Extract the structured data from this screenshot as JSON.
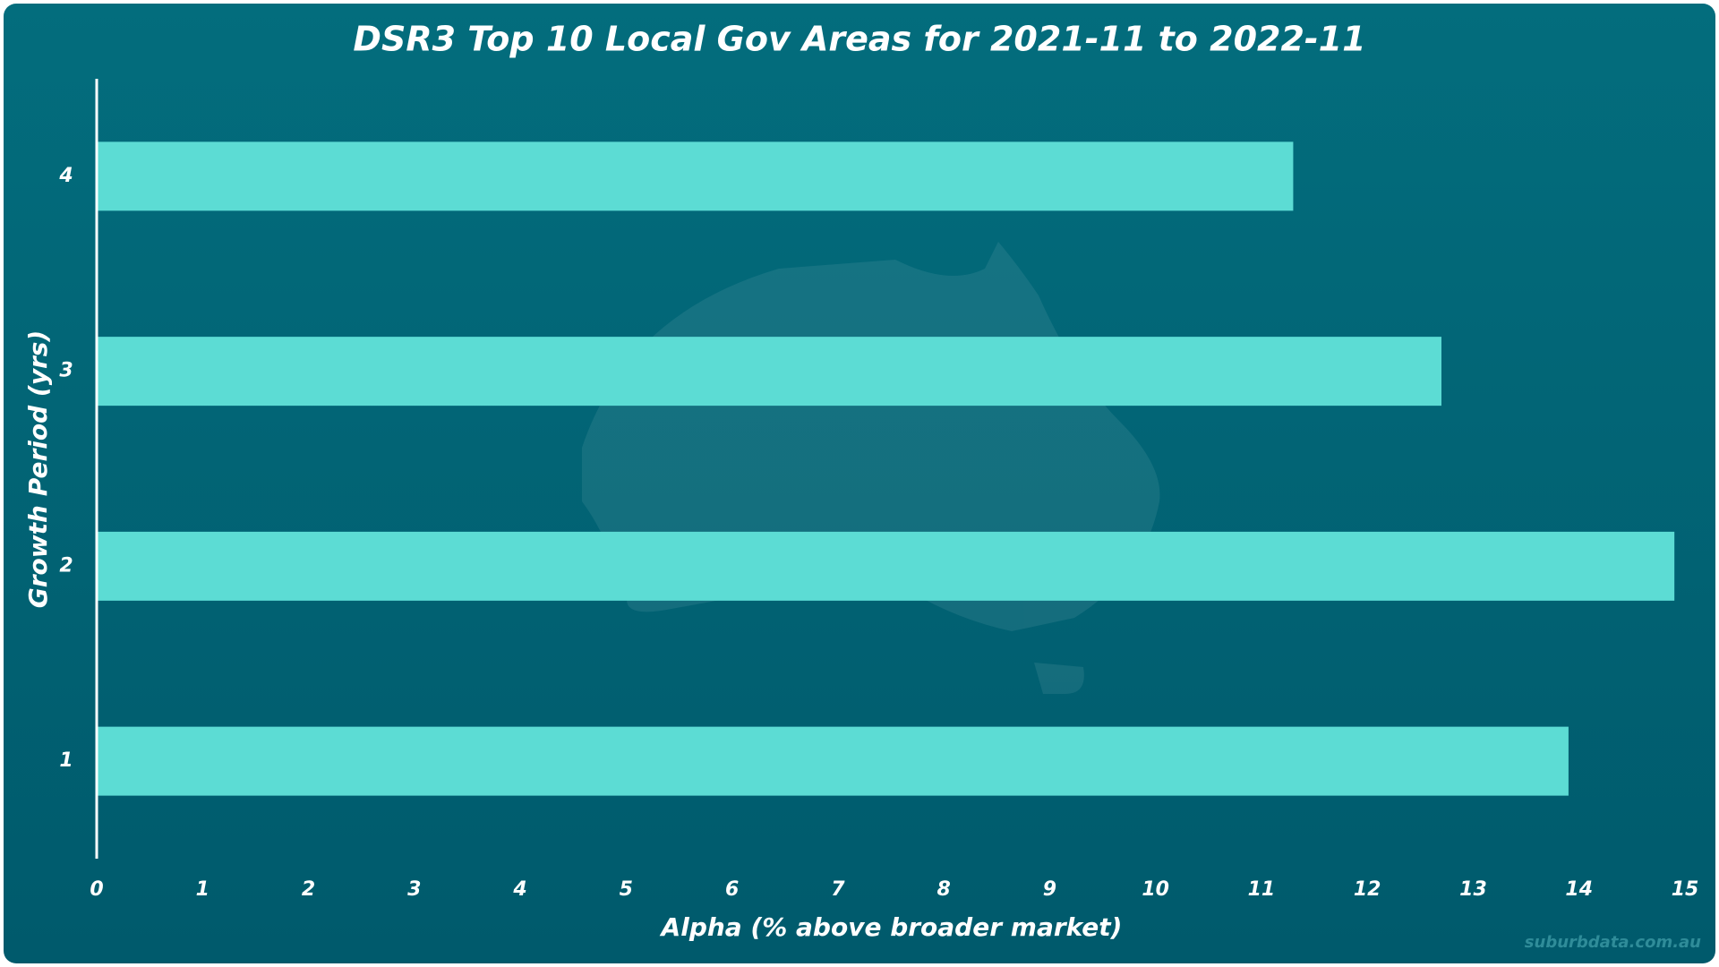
{
  "chart_data": {
    "type": "barh",
    "title": "DSR3 Top 10 Local Gov Areas for 2021-11 to 2022-11",
    "x_label": "Alpha (% above broader market)",
    "y_label": "Growth Period (yrs)",
    "categories": [
      "1",
      "2",
      "3",
      "4"
    ],
    "values": [
      13.9,
      14.9,
      12.7,
      11.3
    ],
    "color": "#5cdcd4",
    "xlim": [
      0,
      15
    ],
    "xticks": [
      0,
      1,
      2,
      3,
      4,
      5,
      6,
      7,
      8,
      9,
      10,
      11,
      12,
      13,
      14,
      15
    ],
    "grid": false,
    "watermark": "suburbdata.com.au"
  }
}
